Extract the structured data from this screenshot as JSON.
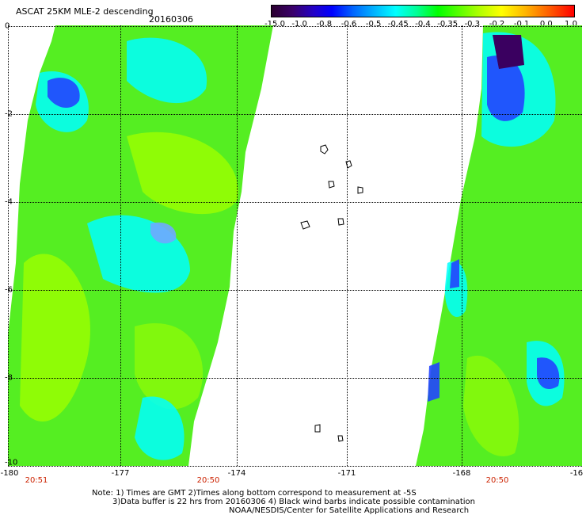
{
  "header": {
    "title": "ASCAT 25KM MLE-2 descending",
    "date": "20160306"
  },
  "colorbar": {
    "labels": [
      "-15.0",
      "-1.0",
      "-0.8",
      "-0.6",
      "-0.5",
      "-0.45",
      "-0.4",
      "-0.35",
      "-0.3",
      "-0.2",
      "-0.1",
      "0.0",
      "1.0"
    ]
  },
  "axes": {
    "x_ticks": [
      "-180",
      "-177",
      "-174",
      "-171",
      "-168",
      "-16"
    ],
    "y_ticks": [
      "0",
      "-2",
      "-4",
      "-6",
      "-8",
      "-10"
    ],
    "times": [
      "20:51",
      "20:50",
      "20:50"
    ]
  },
  "footer": {
    "line1": "Note: 1) Times are GMT 2)Times along bottom correspond to measurement at -5S",
    "line2": "3)Data buffer is 22 hrs from 20160306 4) Black wind barbs indicate possible contamination",
    "line3": "NOAA/NESDIS/Center for Satellite Applications and Research"
  },
  "colors": {
    "green": "#55ee22",
    "lime": "#9eff00",
    "cyan": "#00ffff",
    "teal": "#00dddd",
    "blue": "#2244ff",
    "purple": "#3a0060"
  }
}
